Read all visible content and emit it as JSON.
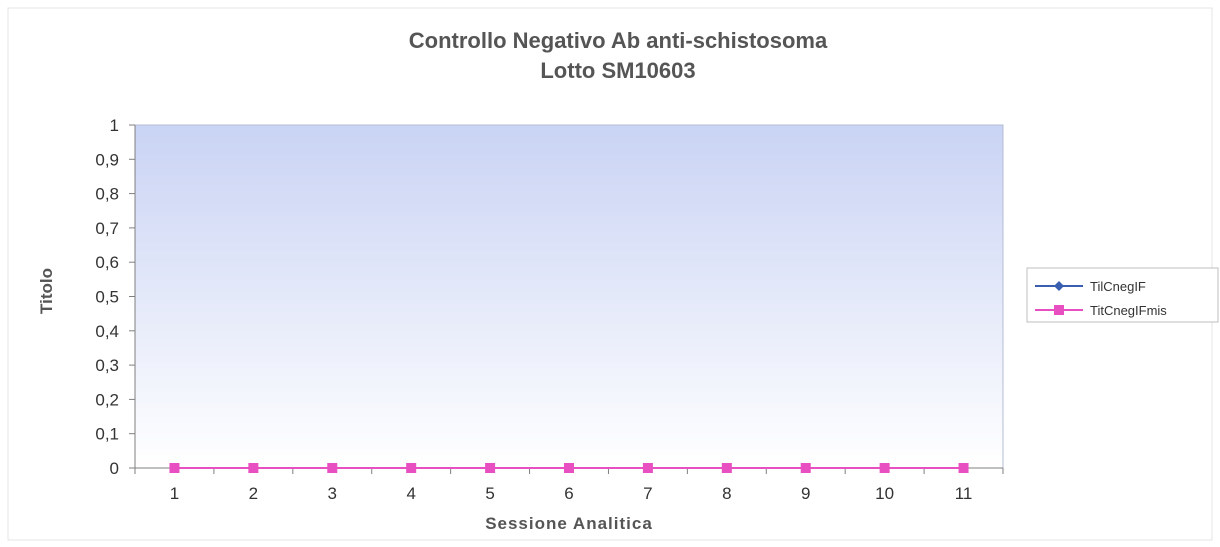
{
  "chart_data": {
    "type": "line",
    "title": [
      "Controllo Negativo Ab anti-schistosoma",
      "Lotto SM10603"
    ],
    "xlabel": "Sessione Analitica",
    "ylabel": "Titolo",
    "categories": [
      "1",
      "2",
      "3",
      "4",
      "5",
      "6",
      "7",
      "8",
      "9",
      "10",
      "11"
    ],
    "ylim": [
      0,
      1
    ],
    "yticks": [
      "0",
      "0,1",
      "0,2",
      "0,3",
      "0,4",
      "0,5",
      "0,6",
      "0,7",
      "0,8",
      "0,9",
      "1"
    ],
    "grid": false,
    "legend_position": "right",
    "series": [
      {
        "name": "TilCnegIF",
        "values": [
          0,
          0,
          0,
          0,
          0,
          0,
          0,
          0,
          0,
          0,
          0
        ],
        "color": "#3b5fb0",
        "marker": "diamond"
      },
      {
        "name": "TitCnegIFmis",
        "values": [
          0,
          0,
          0,
          0,
          0,
          0,
          0,
          0,
          0,
          0,
          0
        ],
        "color": "#e84fc0",
        "marker": "square"
      }
    ],
    "plot_background": {
      "top": "#c9d3f4",
      "bottom": "#ffffff"
    }
  }
}
